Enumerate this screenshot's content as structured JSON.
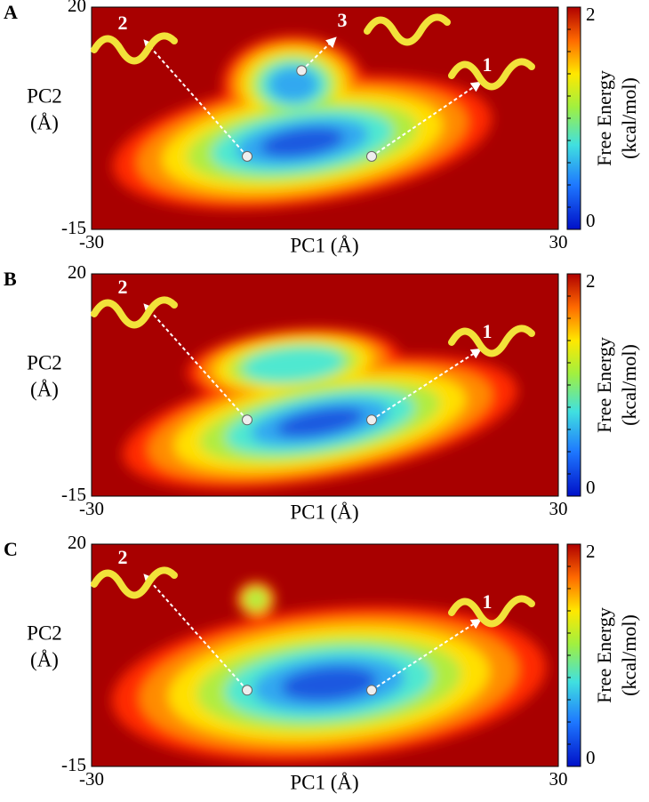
{
  "chart_data": [
    {
      "panel": "A",
      "type": "contour",
      "xlim": [
        -30,
        30
      ],
      "ylim": [
        -15,
        20
      ],
      "xticks": [
        -30,
        30
      ],
      "yticks": [
        -15,
        20
      ],
      "xlabel": "PC1  (Å)",
      "ylabel": [
        "PC2",
        "(Å)"
      ],
      "colorbar": {
        "label": [
          "Free Energy",
          "(kcal/mol)"
        ],
        "lim": [
          0,
          2
        ],
        "ticks": [
          0,
          2
        ]
      },
      "minima": {
        "x": [
          6,
          -10,
          -3
        ],
        "y": [
          -3.5,
          -3.5,
          10
        ],
        "labels": [
          "1",
          "2",
          "3"
        ]
      }
    },
    {
      "panel": "B",
      "type": "contour",
      "xlim": [
        -30,
        30
      ],
      "ylim": [
        -15,
        20
      ],
      "xticks": [
        -30,
        30
      ],
      "yticks": [
        -15,
        20
      ],
      "xlabel": "PC1  (Å)",
      "ylabel": [
        "PC2",
        "(Å)"
      ],
      "colorbar": {
        "label": [
          "Free Energy",
          "(kcal/mol)"
        ],
        "lim": [
          0,
          2
        ],
        "ticks": [
          0,
          2
        ]
      },
      "minima": {
        "x": [
          6,
          -10
        ],
        "y": [
          -3,
          -3
        ],
        "labels": [
          "1",
          "2"
        ]
      }
    },
    {
      "panel": "C",
      "type": "contour",
      "xlim": [
        -30,
        30
      ],
      "ylim": [
        -15,
        20
      ],
      "xticks": [
        -30,
        30
      ],
      "yticks": [
        -15,
        20
      ],
      "xlabel": "PC1  (Å)",
      "ylabel": [
        "PC2",
        "(Å)"
      ],
      "colorbar": {
        "label": [
          "Free Energy",
          "(kcal/mol)"
        ],
        "lim": [
          0,
          2
        ],
        "ticks": [
          0,
          2
        ]
      },
      "minima": {
        "x": [
          6,
          -10
        ],
        "y": [
          -3,
          -3
        ],
        "labels": [
          "1",
          "2"
        ]
      }
    }
  ]
}
